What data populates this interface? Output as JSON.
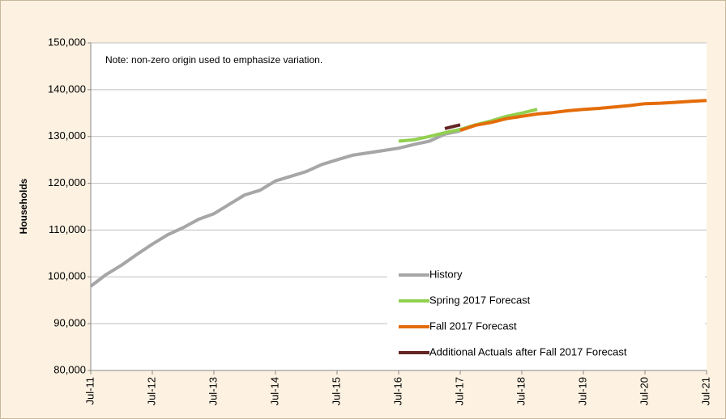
{
  "chart_data": {
    "type": "line",
    "y_label": "Households",
    "annotation": "Note: non-zero origin used to emphasize variation.",
    "x": [
      "2011-07",
      "2011-10",
      "2012-01",
      "2012-04",
      "2012-07",
      "2012-10",
      "2013-01",
      "2013-04",
      "2013-07",
      "2013-10",
      "2014-01",
      "2014-04",
      "2014-07",
      "2014-10",
      "2015-01",
      "2015-04",
      "2015-07",
      "2015-10",
      "2016-01",
      "2016-04",
      "2016-07",
      "2016-10",
      "2017-01",
      "2017-04",
      "2017-07",
      "2017-10",
      "2018-01",
      "2018-04",
      "2018-07",
      "2018-10",
      "2019-01",
      "2019-04",
      "2019-07",
      "2019-10",
      "2020-01",
      "2020-04",
      "2020-07",
      "2020-10",
      "2021-01",
      "2021-04",
      "2021-07"
    ],
    "series": [
      {
        "name": "History",
        "color": "#a6a6a6",
        "values": [
          98000,
          100500,
          102500,
          104800,
          107000,
          109000,
          110500,
          112300,
          113500,
          115500,
          117500,
          118500,
          120500,
          121500,
          122500,
          124000,
          125000,
          126000,
          126500,
          127000,
          127500,
          128300,
          129000,
          130500,
          131200,
          null,
          null,
          null,
          null,
          null,
          null,
          null,
          null,
          null,
          null,
          null,
          null,
          null,
          null,
          null,
          null
        ]
      },
      {
        "name": "Spring 2017 Forecast",
        "color": "#92d050",
        "values": [
          null,
          null,
          null,
          null,
          null,
          null,
          null,
          null,
          null,
          null,
          null,
          null,
          null,
          null,
          null,
          null,
          null,
          null,
          null,
          null,
          129000,
          129300,
          130000,
          130800,
          131500,
          132500,
          133300,
          134300,
          135000,
          135800,
          null,
          null,
          null,
          null,
          null,
          null,
          null,
          null,
          null,
          null,
          null
        ]
      },
      {
        "name": "Fall 2017 Forecast",
        "color": "#e46c0a",
        "values": [
          null,
          null,
          null,
          null,
          null,
          null,
          null,
          null,
          null,
          null,
          null,
          null,
          null,
          null,
          null,
          null,
          null,
          null,
          null,
          null,
          null,
          null,
          null,
          null,
          131300,
          132400,
          133000,
          133800,
          134300,
          134800,
          135100,
          135500,
          135800,
          136000,
          136300,
          136600,
          137000,
          137100,
          137300,
          137500,
          137700
        ]
      },
      {
        "name": "Additional Actuals after Fall 2017 Forecast",
        "color": "#632523",
        "values": [
          null,
          null,
          null,
          null,
          null,
          null,
          null,
          null,
          null,
          null,
          null,
          null,
          null,
          null,
          null,
          null,
          null,
          null,
          null,
          null,
          null,
          null,
          null,
          131700,
          132500,
          null,
          null,
          null,
          null,
          null,
          null,
          null,
          null,
          null,
          null,
          null,
          null,
          null,
          null,
          null,
          null
        ]
      }
    ],
    "xlim": [
      "2011-07",
      "2021-07"
    ],
    "xticks": [
      {
        "value": "2011-07",
        "label": "Jul-11"
      },
      {
        "value": "2012-07",
        "label": "Jul-12"
      },
      {
        "value": "2013-07",
        "label": "Jul-13"
      },
      {
        "value": "2014-07",
        "label": "Jul-14"
      },
      {
        "value": "2015-07",
        "label": "Jul-15"
      },
      {
        "value": "2016-07",
        "label": "Jul-16"
      },
      {
        "value": "2017-07",
        "label": "Jul-17"
      },
      {
        "value": "2018-07",
        "label": "Jul-18"
      },
      {
        "value": "2019-07",
        "label": "Jul-19"
      },
      {
        "value": "2020-07",
        "label": "Jul-20"
      },
      {
        "value": "2021-07",
        "label": "Jul-21"
      }
    ],
    "ylim": [
      80000,
      150000
    ],
    "yticks": [
      {
        "value": 80000,
        "label": "80,000"
      },
      {
        "value": 90000,
        "label": "90,000"
      },
      {
        "value": 100000,
        "label": "100,000"
      },
      {
        "value": 110000,
        "label": "110,000"
      },
      {
        "value": 120000,
        "label": "120,000"
      },
      {
        "value": 130000,
        "label": "130,000"
      },
      {
        "value": 140000,
        "label": "140,000"
      },
      {
        "value": 150000,
        "label": "150,000"
      }
    ],
    "grid": true,
    "legend": "lower right"
  }
}
